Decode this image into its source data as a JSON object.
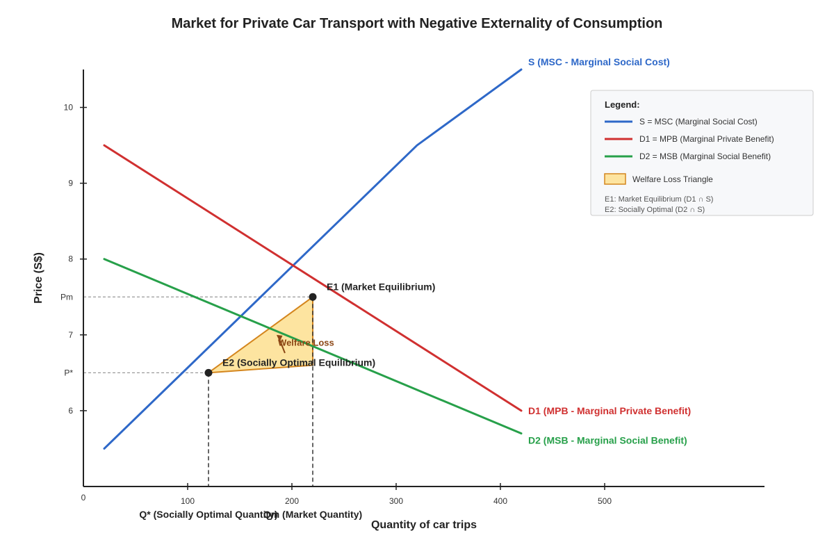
{
  "colors": {
    "supply": "#2e68c8",
    "mpb": "#d03030",
    "msb": "#27a04a",
    "welfare_fill": "#fde4a0",
    "welfare_stroke": "#d4861e",
    "arrow": "#8b4513",
    "point": "#222222"
  },
  "chart_data": {
    "type": "line",
    "title": "Market for Private Car Transport with Negative Externality of Consumption",
    "xlabel": "Quantity of car trips",
    "ylabel": "Price (S$)",
    "xlim": [
      0,
      600
    ],
    "ylim": [
      5,
      10.5
    ],
    "x_ticks": [
      {
        "value": 0,
        "label": "0"
      },
      {
        "value": 100,
        "label": "100"
      },
      {
        "value": 200,
        "label": "200"
      },
      {
        "value": 300,
        "label": "300"
      },
      {
        "value": 400,
        "label": "400"
      },
      {
        "value": 500,
        "label": "500"
      }
    ],
    "y_ticks": [
      {
        "value": 6,
        "label": "6"
      },
      {
        "value": 7,
        "label": "7"
      },
      {
        "value": 8,
        "label": "8"
      },
      {
        "value": 9,
        "label": "9"
      },
      {
        "value": 10,
        "label": "10"
      }
    ],
    "series": [
      {
        "key": "supply",
        "name": "S (MSC - Marginal Social Cost)",
        "points": [
          [
            20,
            5.5
          ],
          [
            320,
            9.5
          ],
          [
            420,
            10.5
          ]
        ]
      },
      {
        "key": "mpb",
        "name": "D1 (MPB - Marginal Private Benefit)",
        "points": [
          [
            20,
            9.5
          ],
          [
            420,
            6.0
          ]
        ]
      },
      {
        "key": "msb",
        "name": "D2 (MSB - Marginal Social Benefit)",
        "points": [
          [
            20,
            8.0
          ],
          [
            420,
            5.7
          ]
        ]
      }
    ],
    "equilibria": [
      {
        "key": "e1",
        "label": "E1 (Market Equilibrium)",
        "x": 220,
        "y": 7.5
      },
      {
        "key": "e2",
        "label": "E2 (Socially Optimal Equilibrium)",
        "x": 120,
        "y": 6.5
      }
    ],
    "price_markers": [
      {
        "label": "Pm",
        "value": 7.5
      },
      {
        "label": "P*",
        "value": 6.5
      }
    ],
    "quantity_markers": [
      {
        "label": "Q* (Socially Optimal Quantity)",
        "value": 120
      },
      {
        "label": "Qm (Market Quantity)",
        "value": 220
      }
    ],
    "welfare_loss": {
      "label": "Welfare Loss",
      "points": [
        [
          120,
          6.5
        ],
        [
          220,
          7.5
        ],
        [
          220,
          6.6
        ]
      ]
    },
    "legend": {
      "title": "Legend:",
      "position": "top-right",
      "entries": [
        {
          "key": "supply",
          "text": "S = MSC (Marginal Social Cost)"
        },
        {
          "key": "mpb",
          "text": "D1 = MPB (Marginal Private Benefit)"
        },
        {
          "key": "msb",
          "text": "D2 = MSB (Marginal Social Benefit)"
        }
      ],
      "welfare_entry": "Welfare Loss Triangle",
      "notes": [
        "E1: Market Equilibrium (D1 ∩ S)",
        "E2: Socially Optimal (D2 ∩ S)"
      ]
    },
    "grid": false
  }
}
